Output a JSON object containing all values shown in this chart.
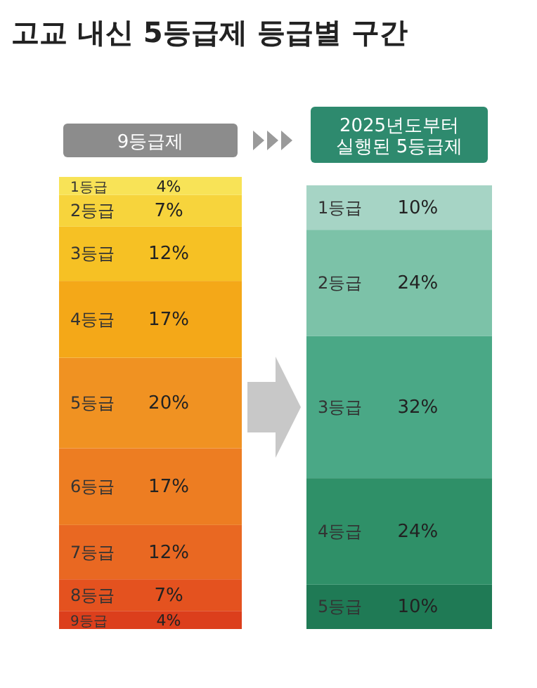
{
  "chart_data": [
    {
      "type": "bar",
      "stacked": true,
      "title": "고교 내신 5등급제 등급별 구간",
      "subtitle": "9등급제",
      "categories": [
        null
      ],
      "series": [
        {
          "name": "9등급",
          "color": "#dc3f1c",
          "values": [
            4
          ],
          "value_labels": [
            "4%"
          ]
        },
        {
          "name": "8등급",
          "color": "#e4521f",
          "values": [
            7
          ],
          "value_labels": [
            "7%"
          ]
        },
        {
          "name": "7등급",
          "color": "#e96822",
          "values": [
            12
          ],
          "value_labels": [
            "12%"
          ]
        },
        {
          "name": "6등급",
          "color": "#ed7d22",
          "values": [
            17
          ],
          "value_labels": [
            "17%"
          ]
        },
        {
          "name": "5등급",
          "color": "#f09222",
          "values": [
            20
          ],
          "value_labels": [
            "20%"
          ]
        },
        {
          "name": "4등급",
          "color": "#f4a818",
          "values": [
            17
          ],
          "value_labels": [
            "17%"
          ]
        },
        {
          "name": "3등급",
          "color": "#f6c124",
          "values": [
            12
          ],
          "value_labels": [
            "12%"
          ]
        },
        {
          "name": "2등급",
          "color": "#f7d43c",
          "values": [
            7
          ],
          "value_labels": [
            "7%"
          ]
        },
        {
          "name": "1등급",
          "color": "#f8e357",
          "values": [
            4
          ],
          "value_labels": [
            "4%"
          ]
        }
      ]
    },
    {
      "type": "bar",
      "stacked": true,
      "subtitle": "2025년도부터 실행된 5등급제",
      "categories": [
        null
      ],
      "series": [
        {
          "name": "5등급",
          "color": "#1f7a55",
          "values": [
            10
          ],
          "value_labels": [
            "10%"
          ]
        },
        {
          "name": "4등급",
          "color": "#2f9068",
          "values": [
            24
          ],
          "value_labels": [
            "24%"
          ]
        },
        {
          "name": "3등급",
          "color": "#4aa886",
          "values": [
            32
          ],
          "value_labels": [
            "32%"
          ]
        },
        {
          "name": "2등급",
          "color": "#7cc2a8",
          "values": [
            24
          ],
          "value_labels": [
            "24%"
          ]
        },
        {
          "name": "1등급",
          "color": "#a6d4c5",
          "values": [
            10
          ],
          "value_labels": [
            "10%"
          ]
        }
      ]
    }
  ]
}
